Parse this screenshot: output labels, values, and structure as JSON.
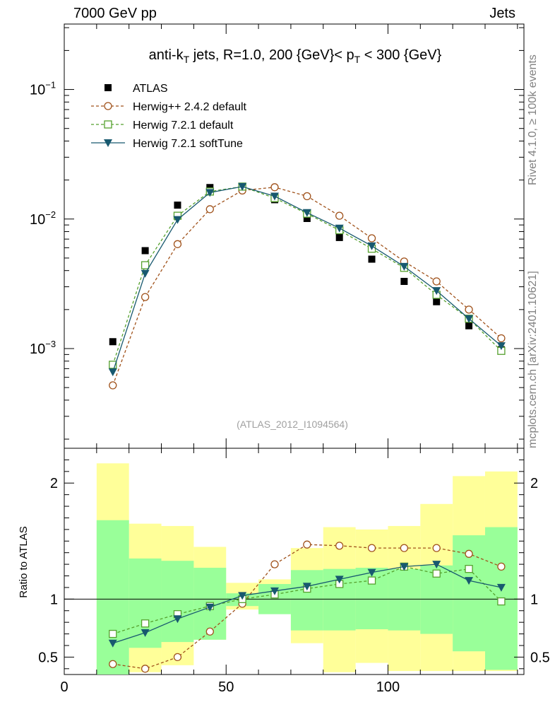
{
  "header": {
    "left": "7000 GeV pp",
    "right": "Jets"
  },
  "side_labels": {
    "rivet": "Rivet 4.1.0, ≥ 100k events",
    "mcplots": "mcplots.cern.ch [arXiv:2401.10621]"
  },
  "chart_data": {
    "type": "line",
    "title": "anti-k_T jets, R=1.0, 200 {GeV}< p_T < 300 {GeV}",
    "title_parts": {
      "pre": "anti-k",
      "sub1": "T",
      "mid": " jets, R=1.0, 200 {GeV}< p",
      "sub2": "T",
      "post": " < 300 {GeV}"
    },
    "watermark": "(ATLAS_2012_I1094564)",
    "x": [
      15,
      25,
      35,
      45,
      55,
      65,
      75,
      85,
      95,
      105,
      115,
      125,
      135
    ],
    "x_edges": [
      10,
      20,
      30,
      40,
      50,
      60,
      70,
      80,
      90,
      100,
      110,
      120,
      130,
      140
    ],
    "xlim": [
      0,
      142
    ],
    "x_ticks": [
      0,
      50,
      100
    ],
    "main": {
      "yscale": "log",
      "ylim": [
        0.00017,
        0.32
      ],
      "y_tick_labels": [
        {
          "value": 0.1,
          "base": "10",
          "exp": "−1"
        },
        {
          "value": 0.01,
          "base": "10",
          "exp": "−2"
        },
        {
          "value": 0.001,
          "base": "10",
          "exp": "−3"
        }
      ]
    },
    "series": [
      {
        "name": "ATLAS",
        "role": "data",
        "marker": "square-filled",
        "color": "#000000",
        "values": [
          0.00113,
          0.0057,
          0.0128,
          0.0175,
          0.0178,
          0.0141,
          0.0101,
          0.0072,
          0.0049,
          0.0033,
          0.0023,
          0.0015,
          0.00098
        ]
      },
      {
        "name": "Herwig++ 2.4.2 default",
        "marker": "circle-open",
        "line": "dashed",
        "color": "#a0521b",
        "values": [
          0.00052,
          0.0025,
          0.0064,
          0.0119,
          0.0166,
          0.0176,
          0.015,
          0.0106,
          0.0071,
          0.0047,
          0.0033,
          0.002,
          0.0012
        ],
        "ratio": [
          0.44,
          0.4,
          0.5,
          0.72,
          0.96,
          1.3,
          1.47,
          1.46,
          1.44,
          1.44,
          1.44,
          1.39,
          1.28
        ]
      },
      {
        "name": "Herwig 7.2.1 default",
        "marker": "square-open",
        "line": "dashed",
        "color": "#55a02d",
        "values": [
          0.00075,
          0.0044,
          0.0106,
          0.0163,
          0.0178,
          0.0145,
          0.011,
          0.0082,
          0.0059,
          0.0042,
          0.0026,
          0.0017,
          0.00096
        ],
        "ratio": [
          0.7,
          0.79,
          0.87,
          0.94,
          1.0,
          1.04,
          1.09,
          1.13,
          1.16,
          1.28,
          1.22,
          1.26,
          0.98
        ]
      },
      {
        "name": "Herwig 7.2.1 softTune",
        "marker": "triangle-down-filled",
        "line": "solid",
        "color": "#18596f",
        "values": [
          0.00066,
          0.0038,
          0.0099,
          0.016,
          0.0178,
          0.015,
          0.0112,
          0.0085,
          0.0062,
          0.0043,
          0.0028,
          0.0017,
          0.00105
        ],
        "ratio": [
          0.62,
          0.71,
          0.83,
          0.93,
          1.03,
          1.07,
          1.11,
          1.17,
          1.23,
          1.28,
          1.3,
          1.16,
          1.1
        ]
      }
    ],
    "ratio_panel": {
      "ylabel": "Ratio to ATLAS",
      "ylim": [
        0.35,
        2.3
      ],
      "y_tick_labels": [
        {
          "value": 0.5,
          "label": "0.5"
        },
        {
          "value": 1,
          "label": "1"
        },
        {
          "value": 2,
          "label": "2"
        }
      ],
      "band_green": [
        [
          0.35,
          1.68
        ],
        [
          0.58,
          1.35
        ],
        [
          0.63,
          1.33
        ],
        [
          0.65,
          1.27
        ],
        [
          0.94,
          1.05
        ],
        [
          0.87,
          1.13
        ],
        [
          0.73,
          1.25
        ],
        [
          0.73,
          1.26
        ],
        [
          0.74,
          1.27
        ],
        [
          0.73,
          1.26
        ],
        [
          0.7,
          1.29
        ],
        [
          0.55,
          1.55
        ],
        [
          0.39,
          1.62
        ]
      ],
      "band_yellow": [
        [
          0.35,
          2.17
        ],
        [
          0.37,
          1.65
        ],
        [
          0.43,
          1.63
        ],
        [
          0.65,
          1.45
        ],
        [
          0.91,
          1.14
        ],
        [
          0.89,
          1.17
        ],
        [
          0.62,
          1.44
        ],
        [
          0.37,
          1.62
        ],
        [
          0.45,
          1.6
        ],
        [
          0.38,
          1.63
        ],
        [
          0.38,
          1.82
        ],
        [
          0.38,
          2.06
        ],
        [
          0.38,
          2.1
        ]
      ]
    }
  }
}
